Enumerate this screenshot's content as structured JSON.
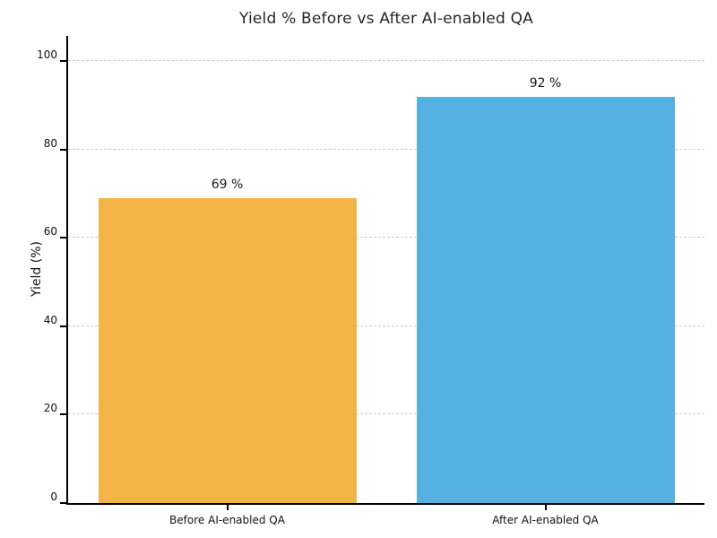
{
  "chart_data": {
    "type": "bar",
    "title": "Yield % Before vs After AI-enabled QA",
    "categories": [
      "Before AI-enabled QA",
      "After AI-enabled QA"
    ],
    "values": [
      69,
      92
    ],
    "bar_labels": [
      "69 %",
      "92 %"
    ],
    "bar_colors": [
      "#F2B446",
      "#56B1E3"
    ],
    "xlabel": "",
    "ylabel": "Yield (%)",
    "ylim": [
      0,
      105.7
    ],
    "yticks": [
      0,
      20,
      40,
      60,
      80,
      100
    ],
    "grid": "horizontal dashed gridlines at y-ticks",
    "legend_position": "none",
    "colors": {
      "title_text": "#24242c",
      "tick_text": "#111111",
      "grid_line": "#cccccc",
      "axis_spine": "#000000",
      "background": "#ffffff"
    }
  }
}
